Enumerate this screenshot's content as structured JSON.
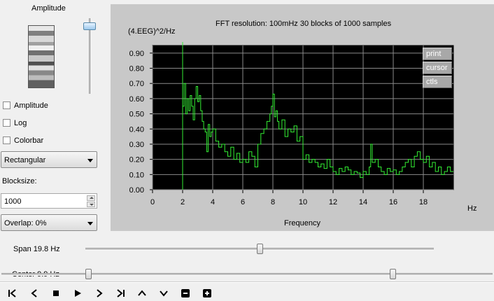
{
  "left_panel": {
    "amplitude_title": "Amplitude",
    "checkboxes": [
      {
        "label": "Amplitude",
        "checked": false
      },
      {
        "label": "Log",
        "checked": false
      },
      {
        "label": "Colorbar",
        "checked": false
      }
    ],
    "window_select": "Rectangular",
    "blocksize_label": "Blocksize:",
    "blocksize_value": "1000",
    "overlap_select": "Overlap: 0%"
  },
  "plot": {
    "subtitle": "FFT resolution:  100mHz    30 blocks of 1000 samples",
    "ylabel": "(4.EEG)^2/Hz",
    "xlabel": "Frequency",
    "xunit": "Hz",
    "buttons": [
      "print",
      "cursor",
      "ctls"
    ]
  },
  "chart_data": {
    "type": "line",
    "title": "",
    "xlabel": "Frequency",
    "ylabel": "(4.EEG)^2/Hz",
    "xlim": [
      0,
      20
    ],
    "ylim": [
      0,
      0.95
    ],
    "xticks": [
      0,
      2,
      4,
      6,
      8,
      10,
      12,
      14,
      16,
      18
    ],
    "xtick_labels": [
      "0",
      "2",
      "4",
      "6",
      "8",
      "10",
      "12",
      "14",
      "16",
      "18"
    ],
    "yticks": [
      0.0,
      0.1,
      0.2,
      0.3,
      0.4,
      0.5,
      0.6,
      0.7,
      0.8,
      0.9
    ],
    "ytick_labels": [
      "0.00",
      "0.10",
      "0.20",
      "0.30",
      "0.40",
      "0.50",
      "0.60",
      "0.70",
      "0.80",
      "0.90"
    ],
    "grid": true,
    "line_color": "#33ee33",
    "background": "#000000",
    "series": [
      {
        "x": [
          2.0,
          2.1,
          2.2,
          2.3,
          2.4,
          2.5,
          2.6,
          2.7,
          2.8,
          2.9,
          3.0,
          3.1,
          3.2,
          3.3,
          3.4,
          3.5,
          3.6,
          3.7,
          3.8,
          3.9,
          4.0,
          4.2,
          4.4,
          4.6,
          4.8,
          5.0,
          5.2,
          5.4,
          5.6,
          5.8,
          6.0,
          6.2,
          6.4,
          6.6,
          6.8,
          7.0,
          7.2,
          7.4,
          7.6,
          7.8,
          7.9,
          8.0,
          8.1,
          8.2,
          8.3,
          8.4,
          8.6,
          8.8,
          9.0,
          9.2,
          9.4,
          9.6,
          9.8,
          10.0,
          10.2,
          10.4,
          10.6,
          10.8,
          11.0,
          11.2,
          11.4,
          11.6,
          11.8,
          12.0,
          12.2,
          12.4,
          12.6,
          12.8,
          13.0,
          13.2,
          13.4,
          13.6,
          13.8,
          14.0,
          14.2,
          14.4,
          14.5,
          14.6,
          14.8,
          15.0,
          15.2,
          15.4,
          15.6,
          15.8,
          16.0,
          16.2,
          16.4,
          16.6,
          16.8,
          17.0,
          17.2,
          17.4,
          17.6,
          17.8,
          18.0,
          18.2,
          18.4,
          18.6,
          18.8,
          19.0,
          19.2,
          19.4,
          19.6,
          19.8
        ],
        "y": [
          0.55,
          0.7,
          0.5,
          0.6,
          0.52,
          0.62,
          0.55,
          0.46,
          0.6,
          0.68,
          0.58,
          0.62,
          0.52,
          0.45,
          0.4,
          0.38,
          0.25,
          0.43,
          0.35,
          0.38,
          0.4,
          0.32,
          0.28,
          0.3,
          0.25,
          0.22,
          0.28,
          0.2,
          0.24,
          0.18,
          0.2,
          0.18,
          0.25,
          0.22,
          0.15,
          0.3,
          0.37,
          0.4,
          0.45,
          0.5,
          0.55,
          0.63,
          0.48,
          0.52,
          0.45,
          0.4,
          0.46,
          0.35,
          0.4,
          0.38,
          0.42,
          0.32,
          0.35,
          0.2,
          0.23,
          0.18,
          0.2,
          0.18,
          0.15,
          0.17,
          0.14,
          0.2,
          0.15,
          0.12,
          0.1,
          0.14,
          0.12,
          0.15,
          0.13,
          0.1,
          0.12,
          0.11,
          0.08,
          0.12,
          0.1,
          0.15,
          0.3,
          0.18,
          0.2,
          0.15,
          0.12,
          0.1,
          0.14,
          0.12,
          0.13,
          0.1,
          0.12,
          0.15,
          0.18,
          0.2,
          0.15,
          0.22,
          0.25,
          0.2,
          0.18,
          0.22,
          0.15,
          0.18,
          0.12,
          0.15,
          0.1,
          0.12,
          0.15,
          0.12
        ]
      }
    ]
  },
  "sliders": {
    "span_label": "Span 19.8 Hz",
    "span_value": 0.5,
    "center_label": "Center 9.9 Hz",
    "center_value": 0.0
  },
  "toolbar": {
    "buttons": [
      "first-icon",
      "prev-icon",
      "stop-icon",
      "play-icon",
      "next-icon",
      "last-icon",
      "up-icon",
      "down-icon",
      "minus-icon",
      "plus-icon"
    ]
  }
}
